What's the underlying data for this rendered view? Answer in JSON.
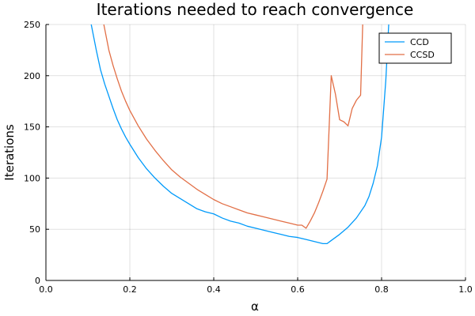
{
  "chart_data": {
    "type": "line",
    "title": "Iterations needed to reach convergence",
    "xlabel": "α",
    "ylabel": "Iterations",
    "xlim": [
      0,
      1
    ],
    "ylim": [
      0,
      250
    ],
    "xticks": [
      0,
      0.2,
      0.4,
      0.6,
      0.8,
      1
    ],
    "xtick_labels": [
      "0.0",
      "0.2",
      "0.4",
      "0.6",
      "0.8",
      "1.0"
    ],
    "yticks": [
      0,
      50,
      100,
      150,
      200,
      250
    ],
    "ytick_labels": [
      "0",
      "50",
      "100",
      "150",
      "200",
      "250"
    ],
    "grid": true,
    "legend_position": "top-right",
    "series": [
      {
        "name": "CCD",
        "color": "#009AFA",
        "x": [
          0.108,
          0.12,
          0.13,
          0.14,
          0.15,
          0.16,
          0.17,
          0.18,
          0.19,
          0.2,
          0.22,
          0.24,
          0.26,
          0.28,
          0.3,
          0.32,
          0.34,
          0.36,
          0.38,
          0.4,
          0.42,
          0.44,
          0.46,
          0.48,
          0.5,
          0.52,
          0.54,
          0.56,
          0.58,
          0.6,
          0.62,
          0.64,
          0.66,
          0.67,
          0.68,
          0.7,
          0.72,
          0.74,
          0.76,
          0.77,
          0.78,
          0.79,
          0.8,
          0.81,
          0.817
        ],
        "y": [
          250,
          225,
          206,
          192,
          180,
          168,
          157,
          148,
          140,
          133,
          120,
          109,
          100,
          92,
          85,
          80,
          75,
          70,
          67,
          65,
          61,
          58,
          56,
          53,
          51,
          49,
          47,
          45,
          43,
          42,
          40,
          38,
          36,
          36,
          39,
          45,
          52,
          61,
          73,
          82,
          95,
          112,
          140,
          195,
          250
        ]
      },
      {
        "name": "CCSD",
        "color": "#E26F46",
        "x": [
          0.138,
          0.15,
          0.16,
          0.17,
          0.18,
          0.19,
          0.2,
          0.22,
          0.24,
          0.26,
          0.28,
          0.3,
          0.32,
          0.34,
          0.36,
          0.38,
          0.4,
          0.42,
          0.44,
          0.46,
          0.48,
          0.5,
          0.52,
          0.54,
          0.56,
          0.58,
          0.6,
          0.61,
          0.62,
          0.63,
          0.64,
          0.65,
          0.66,
          0.67,
          0.68,
          0.69,
          0.7,
          0.71,
          0.72,
          0.73,
          0.74,
          0.75,
          0.755
        ],
        "y": [
          250,
          225,
          210,
          197,
          185,
          175,
          166,
          151,
          138,
          127,
          117,
          108,
          101,
          95,
          89,
          84,
          79,
          75,
          72,
          69,
          66,
          64,
          62,
          60,
          58,
          56,
          54,
          54,
          51,
          58,
          66,
          76,
          87,
          99,
          200,
          182,
          157,
          155,
          151,
          168,
          176,
          181,
          250
        ]
      }
    ]
  }
}
